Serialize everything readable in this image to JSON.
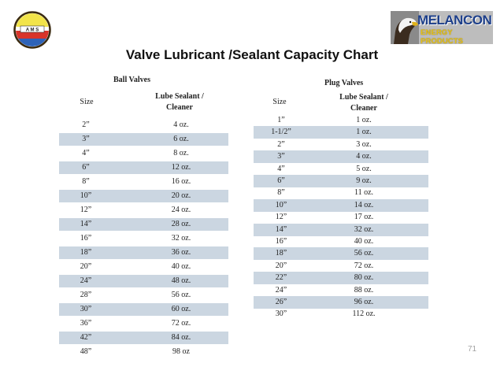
{
  "page": {
    "title": "Valve Lubricant /Sealant Capacity Chart",
    "page_number": "71",
    "logo_left_text": "A M S",
    "logo_right": {
      "word1": "MELANCON",
      "word2": "ENERGY PRODUCTS",
      "icon": "eagle-icon"
    }
  },
  "ball_valves": {
    "heading": "Ball Valves",
    "col_size": "Size",
    "col_lube_line1": "Lube Sealant /",
    "col_lube_line2": "Cleaner",
    "rows": [
      {
        "size": "2”",
        "amount": "4 oz."
      },
      {
        "size": "3”",
        "amount": "6 oz."
      },
      {
        "size": "4”",
        "amount": "8 oz."
      },
      {
        "size": "6”",
        "amount": "12 oz."
      },
      {
        "size": "8”",
        "amount": "16 oz."
      },
      {
        "size": "10”",
        "amount": "20 oz."
      },
      {
        "size": "12”",
        "amount": "24 oz."
      },
      {
        "size": "14”",
        "amount": "28 oz."
      },
      {
        "size": "16”",
        "amount": "32 oz."
      },
      {
        "size": "18”",
        "amount": "36 oz."
      },
      {
        "size": "20”",
        "amount": "40 oz."
      },
      {
        "size": "24”",
        "amount": "48 oz."
      },
      {
        "size": "28”",
        "amount": "56 oz."
      },
      {
        "size": "30”",
        "amount": "60 oz."
      },
      {
        "size": "36”",
        "amount": "72 oz."
      },
      {
        "size": "42”",
        "amount": "84 oz."
      },
      {
        "size": "48”",
        "amount": "98 oz"
      }
    ]
  },
  "plug_valves": {
    "heading": "Plug Valves",
    "col_size": "Size",
    "col_lube_line1": "Lube Sealant /",
    "col_lube_line2": "Cleaner",
    "rows": [
      {
        "size": "1”",
        "amount": "1 oz."
      },
      {
        "size": "1-1/2”",
        "amount": "1 oz."
      },
      {
        "size": "2”",
        "amount": "3 oz."
      },
      {
        "size": "3”",
        "amount": "4 oz."
      },
      {
        "size": "4”",
        "amount": "5 oz."
      },
      {
        "size": "6”",
        "amount": "9 oz."
      },
      {
        "size": "8”",
        "amount": "11 oz."
      },
      {
        "size": "10”",
        "amount": "14 oz."
      },
      {
        "size": "12”",
        "amount": "17 oz."
      },
      {
        "size": "14”",
        "amount": "32 oz."
      },
      {
        "size": "16”",
        "amount": "40 oz."
      },
      {
        "size": "18”",
        "amount": "56 oz."
      },
      {
        "size": "20”",
        "amount": "72 oz."
      },
      {
        "size": "22”",
        "amount": "80 oz."
      },
      {
        "size": "24”",
        "amount": "88 oz."
      },
      {
        "size": "26”",
        "amount": "96 oz."
      },
      {
        "size": "30”",
        "amount": "112 oz."
      }
    ]
  },
  "colors": {
    "shaded_row": "#cbd6e1",
    "logo_blue": "#1d3f8a",
    "logo_gold": "#e6c21a"
  }
}
